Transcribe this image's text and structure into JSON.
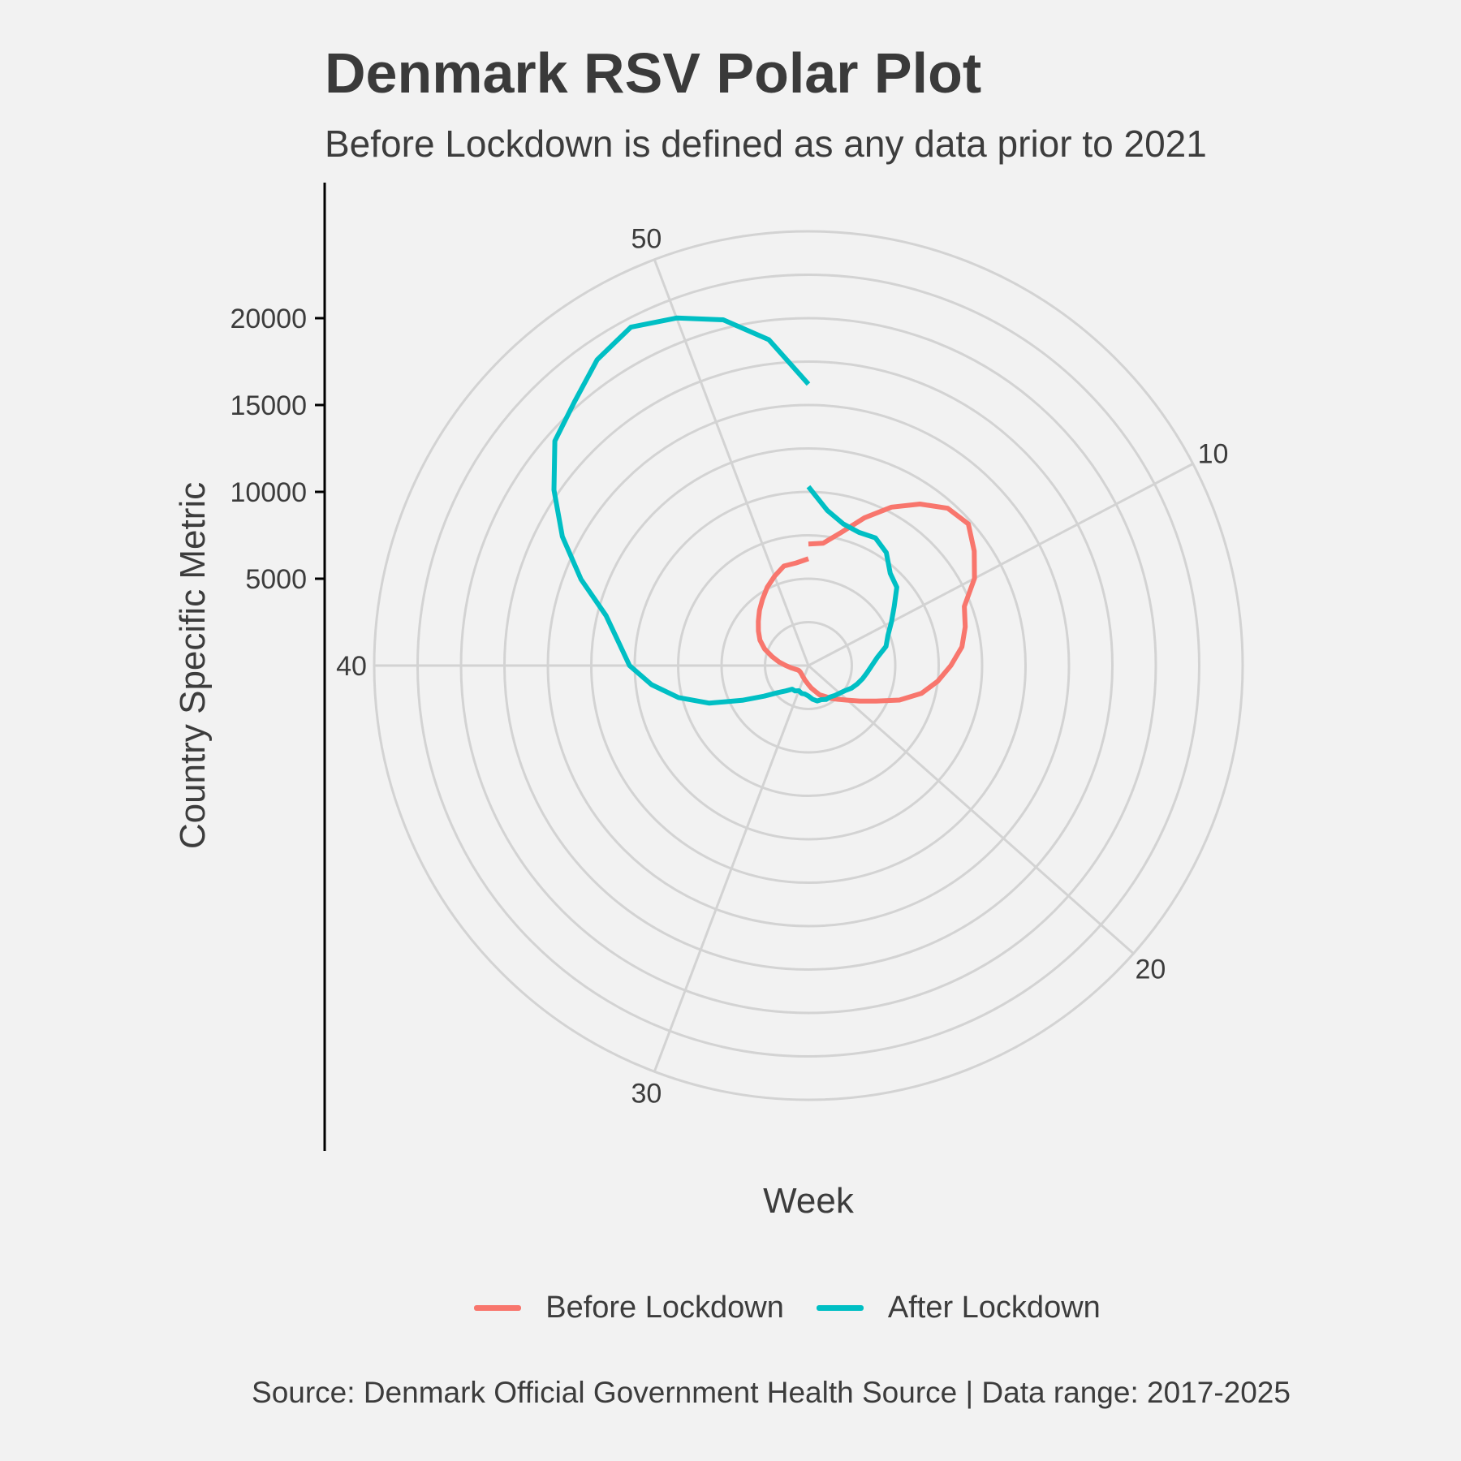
{
  "chart_data": {
    "type": "line",
    "coord": "polar",
    "title": "Denmark RSV Polar Plot",
    "subtitle": "Before Lockdown is defined as any data prior to 2021",
    "xlabel": "Week",
    "ylabel": "Country Specific Metric",
    "caption": "Source: Denmark Official Government Health Source | Data range: 2017-2025",
    "legend_position": "bottom",
    "theta_ticks": [
      10,
      20,
      30,
      40,
      50
    ],
    "theta_range": [
      1,
      53
    ],
    "r_ticks": [
      5000,
      10000,
      15000,
      20000
    ],
    "r_range": [
      0,
      25000
    ],
    "grid": true,
    "series": [
      {
        "name": "Before Lockdown",
        "color": "#F8766D",
        "x": [
          1,
          2,
          3,
          4,
          5,
          6,
          7,
          8,
          9,
          10,
          11,
          12,
          13,
          14,
          15,
          16,
          17,
          18,
          19,
          20,
          21,
          22,
          23,
          24,
          25,
          26,
          27,
          28,
          29,
          30,
          31,
          32,
          33,
          34,
          35,
          36,
          37,
          38,
          39,
          40,
          41,
          42,
          43,
          44,
          45,
          46,
          47,
          48,
          49,
          50,
          51,
          52,
          53
        ],
        "values": [
          7000,
          7100,
          7900,
          9100,
          10300,
          11300,
          12100,
          12300,
          11600,
          10800,
          9600,
          9300,
          8900,
          8200,
          7500,
          6700,
          5600,
          4400,
          3600,
          3000,
          2600,
          2300,
          2000,
          1800,
          1500,
          1300,
          1100,
          950,
          850,
          760,
          700,
          650,
          620,
          600,
          600,
          620,
          680,
          820,
          1020,
          1300,
          1700,
          2150,
          2700,
          3150,
          3500,
          3850,
          4250,
          4650,
          5100,
          5500,
          5900,
          5950,
          6150
        ]
      },
      {
        "name": "After Lockdown",
        "color": "#00BFC4",
        "x": [
          1,
          2,
          3,
          4,
          5,
          6,
          7,
          8,
          9,
          10,
          11,
          12,
          13,
          14,
          15,
          16,
          17,
          18,
          19,
          20,
          21,
          22,
          23,
          24,
          25,
          26,
          27,
          28,
          29,
          30,
          31,
          32,
          33,
          34,
          35,
          36,
          37,
          38,
          39,
          40,
          41,
          42,
          43,
          44,
          45,
          46,
          47,
          48,
          49,
          50,
          51,
          52,
          53
        ],
        "values": [
          10300,
          9000,
          8400,
          8200,
          8300,
          7900,
          7100,
          6800,
          6000,
          5400,
          4900,
          4600,
          4000,
          3650,
          3400,
          3200,
          3000,
          2800,
          2550,
          2400,
          2300,
          2200,
          2200,
          2100,
          2100,
          1950,
          1750,
          1650,
          1650,
          1550,
          1650,
          1650,
          1950,
          2350,
          3100,
          4300,
          6100,
          7700,
          9100,
          10300,
          11000,
          12000,
          14000,
          16000,
          17800,
          19500,
          20300,
          21400,
          22000,
          21400,
          20500,
          18900,
          16200
        ]
      }
    ]
  }
}
